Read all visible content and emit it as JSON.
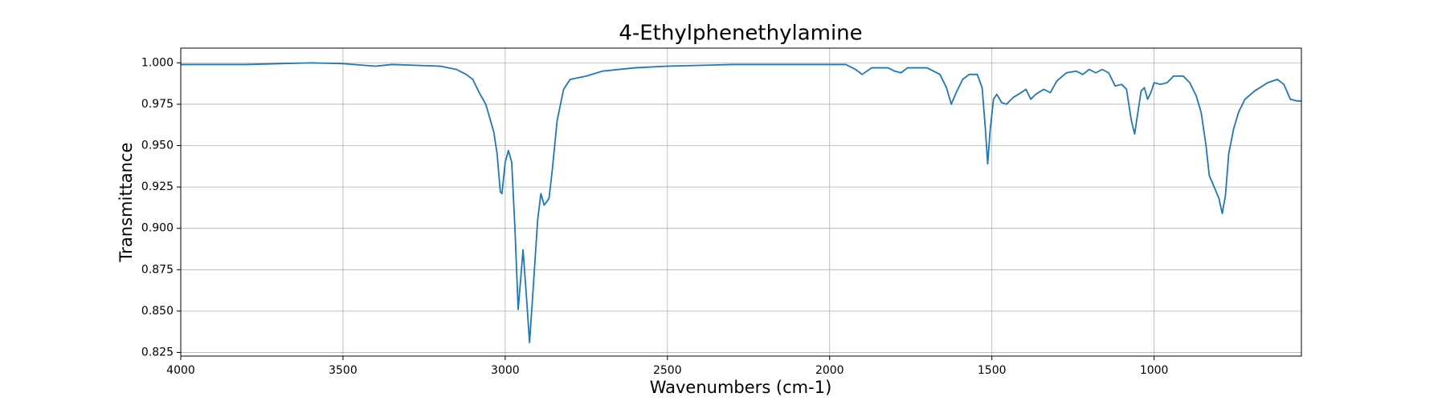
{
  "chart_data": {
    "type": "line",
    "title": "4-Ethylphenethylamine",
    "xlabel": "Wavenumbers (cm-1)",
    "ylabel": "Transmittance",
    "color": "#1f77b4",
    "grid": true,
    "xlim": [
      4000,
      546
    ],
    "ylim": [
      0.8228,
      1.0089
    ],
    "xticks": [
      4000,
      3500,
      3000,
      2500,
      2000,
      1500,
      1000
    ],
    "yticks": [
      {
        "value": 1.0,
        "label": "1.000"
      },
      0.975,
      {
        "value": 0.95,
        "label": "0.950"
      },
      0.925,
      {
        "value": 0.9,
        "label": "0.900"
      },
      0.875,
      {
        "value": 0.85,
        "label": "0.850"
      },
      0.825
    ],
    "x": [
      4000,
      3800,
      3600,
      3500,
      3400,
      3350,
      3200,
      3150,
      3120,
      3100,
      3080,
      3060,
      3045,
      3035,
      3025,
      3015,
      3010,
      3000,
      2990,
      2980,
      2970,
      2960,
      2950,
      2945,
      2935,
      2925,
      2915,
      2900,
      2890,
      2880,
      2865,
      2855,
      2840,
      2820,
      2800,
      2750,
      2700,
      2600,
      2500,
      2300,
      2100,
      1950,
      1920,
      1900,
      1870,
      1820,
      1800,
      1780,
      1760,
      1700,
      1660,
      1640,
      1625,
      1610,
      1590,
      1570,
      1545,
      1530,
      1520,
      1513,
      1505,
      1495,
      1485,
      1470,
      1455,
      1435,
      1410,
      1395,
      1380,
      1365,
      1340,
      1320,
      1300,
      1270,
      1240,
      1220,
      1200,
      1180,
      1160,
      1140,
      1120,
      1100,
      1085,
      1070,
      1060,
      1050,
      1040,
      1030,
      1020,
      1010,
      1000,
      980,
      960,
      940,
      910,
      890,
      870,
      855,
      840,
      830,
      815,
      800,
      790,
      780,
      770,
      755,
      740,
      720,
      690,
      650,
      620,
      600,
      580,
      560,
      546
    ],
    "values": [
      0.999,
      0.999,
      1.0,
      0.9995,
      0.998,
      0.999,
      0.998,
      0.996,
      0.993,
      0.99,
      0.982,
      0.975,
      0.965,
      0.958,
      0.945,
      0.922,
      0.921,
      0.94,
      0.947,
      0.94,
      0.9,
      0.851,
      0.875,
      0.887,
      0.86,
      0.831,
      0.86,
      0.905,
      0.921,
      0.914,
      0.918,
      0.935,
      0.965,
      0.984,
      0.99,
      0.992,
      0.995,
      0.997,
      0.998,
      0.999,
      0.999,
      0.999,
      0.996,
      0.993,
      0.997,
      0.997,
      0.995,
      0.994,
      0.997,
      0.997,
      0.993,
      0.985,
      0.975,
      0.982,
      0.99,
      0.993,
      0.993,
      0.985,
      0.96,
      0.939,
      0.96,
      0.978,
      0.981,
      0.976,
      0.975,
      0.979,
      0.982,
      0.984,
      0.978,
      0.981,
      0.984,
      0.982,
      0.989,
      0.994,
      0.995,
      0.993,
      0.996,
      0.994,
      0.996,
      0.994,
      0.986,
      0.987,
      0.984,
      0.965,
      0.957,
      0.97,
      0.983,
      0.985,
      0.978,
      0.982,
      0.988,
      0.987,
      0.988,
      0.992,
      0.992,
      0.988,
      0.98,
      0.97,
      0.95,
      0.932,
      0.925,
      0.918,
      0.909,
      0.92,
      0.945,
      0.96,
      0.97,
      0.978,
      0.983,
      0.988,
      0.99,
      0.987,
      0.978,
      0.977,
      0.977
    ]
  }
}
